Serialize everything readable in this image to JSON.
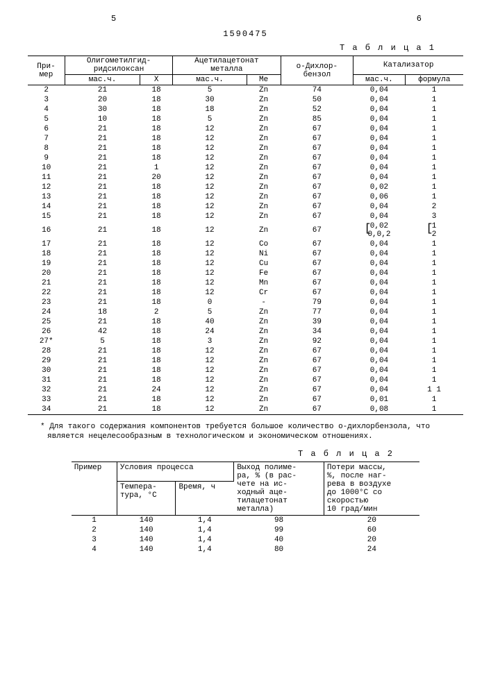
{
  "page_left": "5",
  "page_right": "6",
  "doc_id": "1590475",
  "table1": {
    "label": "Т а б л и ц а 1",
    "headers": {
      "c1": "При-\nмер",
      "c2": "Олигометилгид-\nридсилоксан",
      "c2a": "мас.ч.",
      "c2b": "X",
      "c3": "Ацетилацетонат\nметалла",
      "c3a": "мас.ч.",
      "c3b": "Me",
      "c4": "о-Дихлор-\nбензол",
      "c5": "Катализатор",
      "c5a": "мас.ч.",
      "c5b": "формула"
    },
    "rows": [
      [
        "2",
        "21",
        "18",
        "5",
        "Zn",
        "74",
        "0,04",
        "1"
      ],
      [
        "3",
        "20",
        "18",
        "30",
        "Zn",
        "50",
        "0,04",
        "1"
      ],
      [
        "4",
        "30",
        "18",
        "18",
        "Zn",
        "52",
        "0,04",
        "1"
      ],
      [
        "5",
        "10",
        "18",
        "5",
        "Zn",
        "85",
        "0,04",
        "1"
      ],
      [
        "6",
        "21",
        "18",
        "12",
        "Zn",
        "67",
        "0,04",
        "1"
      ],
      [
        "7",
        "21",
        "18",
        "12",
        "Zn",
        "67",
        "0,04",
        "1"
      ],
      [
        "8",
        "21",
        "18",
        "12",
        "Zn",
        "67",
        "0,04",
        "1"
      ],
      [
        "9",
        "21",
        "18",
        "12",
        "Zn",
        "67",
        "0,04",
        "1"
      ],
      [
        "10",
        "21",
        "1",
        "12",
        "Zn",
        "67",
        "0,04",
        "1"
      ],
      [
        "11",
        "21",
        "20",
        "12",
        "Zn",
        "67",
        "0,04",
        "1"
      ],
      [
        "12",
        "21",
        "18",
        "12",
        "Zn",
        "67",
        "0,02",
        "1"
      ],
      [
        "13",
        "21",
        "18",
        "12",
        "Zn",
        "67",
        "0,06",
        "1"
      ],
      [
        "14",
        "21",
        "18",
        "12",
        "Zn",
        "67",
        "0,04",
        "2"
      ],
      [
        "15",
        "21",
        "18",
        "12",
        "Zn",
        "67",
        "0,04",
        "3"
      ],
      [
        "16",
        "21",
        "18",
        "12",
        "Zn",
        "67",
        "0,02\n0,0,2",
        "1\n2"
      ],
      [
        "17",
        "21",
        "18",
        "12",
        "Co",
        "67",
        "0,04",
        "1"
      ],
      [
        "18",
        "21",
        "18",
        "12",
        "Ni",
        "67",
        "0,04",
        "1"
      ],
      [
        "19",
        "21",
        "18",
        "12",
        "Cu",
        "67",
        "0,04",
        "1"
      ],
      [
        "20",
        "21",
        "18",
        "12",
        "Fe",
        "67",
        "0,04",
        "1"
      ],
      [
        "21",
        "21",
        "18",
        "12",
        "Mn",
        "67",
        "0,04",
        "1"
      ],
      [
        "22",
        "21",
        "18",
        "12",
        "Cr",
        "67",
        "0,04",
        "1"
      ],
      [
        "23",
        "21",
        "18",
        "0",
        "-",
        "79",
        "0,04",
        "1"
      ],
      [
        "24",
        "18",
        "2",
        "5",
        "Zn",
        "77",
        "0,04",
        "1"
      ],
      [
        "25",
        "21",
        "18",
        "40",
        "Zn",
        "39",
        "0,04",
        "1"
      ],
      [
        "26",
        "42",
        "18",
        "24",
        "Zn",
        "34",
        "0,04",
        "1"
      ],
      [
        "27*",
        "5",
        "18",
        "3",
        "Zn",
        "92",
        "0,04",
        "1"
      ],
      [
        "28",
        "21",
        "18",
        "12",
        "Zn",
        "67",
        "0,04",
        "1"
      ],
      [
        "29",
        "21",
        "18",
        "12",
        "Zn",
        "67",
        "0,04",
        "1"
      ],
      [
        "30",
        "21",
        "18",
        "12",
        "Zn",
        "67",
        "0,04",
        "1"
      ],
      [
        "31",
        "21",
        "18",
        "12",
        "Zn",
        "67",
        "0,04",
        "1"
      ],
      [
        "32",
        "21",
        "24",
        "12",
        "Zn",
        "67",
        "0,04",
        "1  1"
      ],
      [
        "33",
        "21",
        "18",
        "12",
        "Zn",
        "67",
        "0,01",
        "1"
      ],
      [
        "34",
        "21",
        "18",
        "12",
        "Zn",
        "67",
        "0,08",
        "1"
      ]
    ]
  },
  "footnote": "* Для такого содержания компонентов требуется большое количество о-дихлорбензола, что является нецелесообразным в технологическом и экономическом отношениях.",
  "table2": {
    "label": "Т а б л и ц а 2",
    "headers": {
      "c1": "Пример",
      "c2": "Условия процесса",
      "c2a": "Темпера-\nтура, °C",
      "c2b": "Время, ч",
      "c3": "Выход полиме-\nра, % (в рас-\nчете на ис-\nходный аце-\nтилацетонат\nметалла)",
      "c4": "Потери массы,\n%, после наг-\nрева в воздухе\nдо 1000°C со\nскоростью\n10 град/мин"
    },
    "rows": [
      [
        "1",
        "140",
        "1,4",
        "98",
        "20"
      ],
      [
        "2",
        "140",
        "1,4",
        "99",
        "60"
      ],
      [
        "3",
        "140",
        "1,4",
        "40",
        "20"
      ],
      [
        "4",
        "140",
        "1,4",
        "80",
        "24"
      ]
    ]
  }
}
